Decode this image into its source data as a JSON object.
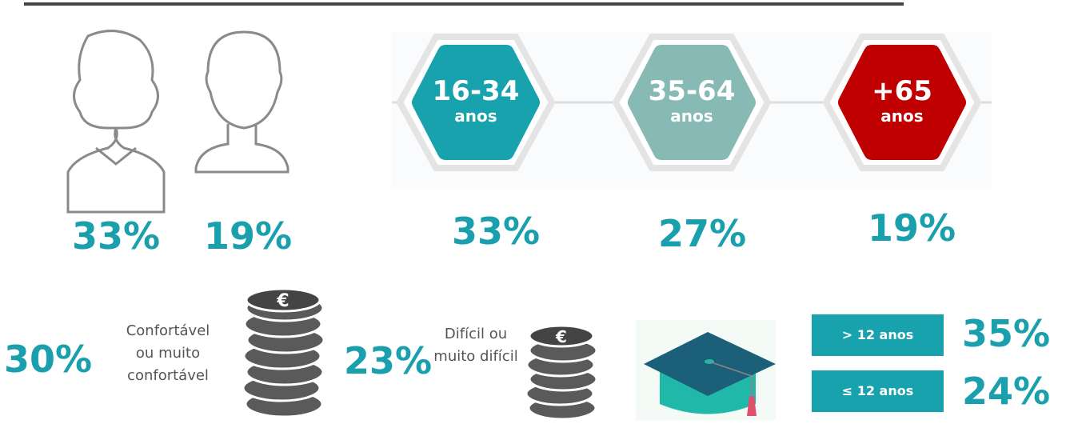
{
  "gender": {
    "female": "33%",
    "male": "19%"
  },
  "age_groups": [
    {
      "range": "16-34",
      "unit": "anos",
      "percent": "33%"
    },
    {
      "range": "35-64",
      "unit": "anos",
      "percent": "27%"
    },
    {
      "range": "+65",
      "unit": "anos",
      "percent": "19%"
    }
  ],
  "income": {
    "comfortable": {
      "percent": "30%",
      "label": [
        "Confortável",
        "ou muito",
        "confortável"
      ]
    },
    "difficult": {
      "percent": "23%",
      "label": [
        "Difícil ou",
        "muito difícil"
      ]
    }
  },
  "education": [
    {
      "label": "> 12 anos",
      "percent": "35%"
    },
    {
      "label": "≤ 12 anos",
      "percent": "24%"
    }
  ]
}
